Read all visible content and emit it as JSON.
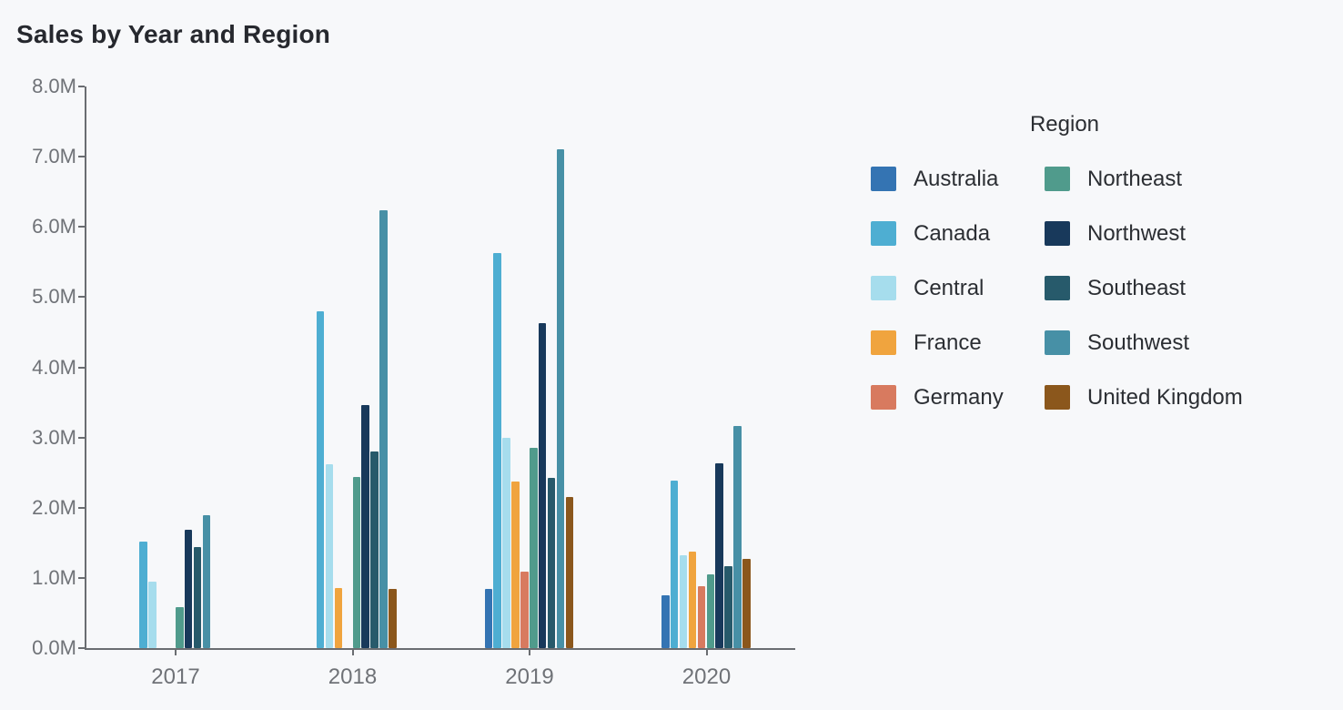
{
  "chart_data": {
    "type": "bar",
    "title": "Sales by Year and Region",
    "legend_title": "Region",
    "legend_position": "right",
    "grid": false,
    "categories": [
      "2017",
      "2018",
      "2019",
      "2020"
    ],
    "y_unit": "millions",
    "ylim": [
      0,
      8
    ],
    "ytick_labels": [
      "0.0M",
      "1.0M",
      "2.0M",
      "3.0M",
      "4.0M",
      "5.0M",
      "6.0M",
      "7.0M",
      "8.0M"
    ],
    "series": [
      {
        "name": "Australia",
        "color": "#3474b3",
        "values": [
          null,
          null,
          0.84,
          0.75
        ]
      },
      {
        "name": "Canada",
        "color": "#4eaed2",
        "values": [
          1.52,
          4.8,
          5.63,
          2.39
        ]
      },
      {
        "name": "Central",
        "color": "#a6dded",
        "values": [
          0.95,
          2.62,
          3.0,
          1.32
        ]
      },
      {
        "name": "France",
        "color": "#f0a43e",
        "values": [
          null,
          0.86,
          2.37,
          1.37
        ]
      },
      {
        "name": "Germany",
        "color": "#d87a5f",
        "values": [
          null,
          null,
          1.09,
          0.88
        ]
      },
      {
        "name": "Northeast",
        "color": "#509b8c",
        "values": [
          0.58,
          2.44,
          2.85,
          1.05
        ]
      },
      {
        "name": "Northwest",
        "color": "#18395b",
        "values": [
          1.69,
          3.46,
          4.63,
          2.63
        ]
      },
      {
        "name": "Southeast",
        "color": "#275a6b",
        "values": [
          1.44,
          2.8,
          2.43,
          1.17
        ]
      },
      {
        "name": "Southwest",
        "color": "#4790a6",
        "values": [
          1.89,
          6.24,
          7.11,
          3.16
        ]
      },
      {
        "name": "United Kingdom",
        "color": "#8b571c",
        "values": [
          null,
          0.84,
          2.15,
          1.27
        ]
      }
    ]
  },
  "colors": {
    "background": "#f7f8fa",
    "axis": "#6a6d71",
    "tick_text": "#6f7277",
    "title_text": "#26282e",
    "legend_text": "#2b2e33"
  }
}
